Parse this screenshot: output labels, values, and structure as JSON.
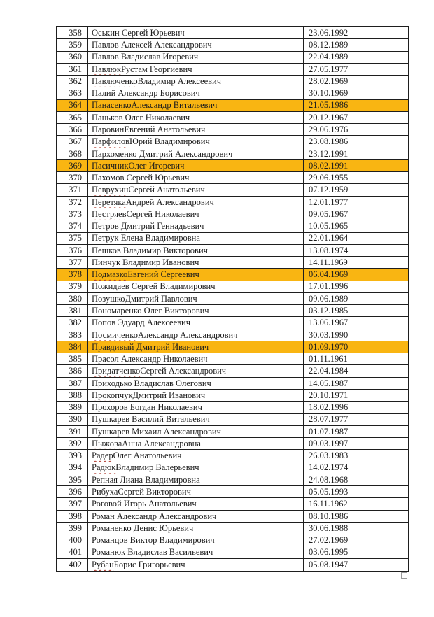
{
  "table": {
    "highlight_color": "#f9b512",
    "spellcheck_underline_color": "#b03a2e",
    "rows": [
      {
        "n": "358",
        "name": "Оськин Сергей Юрьевич",
        "dob": "23.06.1992",
        "hl": false,
        "sp": false
      },
      {
        "n": "359",
        "name": "Павлов Алексей Александрович",
        "dob": "08.12.1989",
        "hl": false,
        "sp": false
      },
      {
        "n": "360",
        "name": "Павлов Владислав Игоревич",
        "dob": "22.04.1989",
        "hl": false,
        "sp": false
      },
      {
        "n": "361",
        "name": "Павлюк Рустам Георгиевич",
        "dob": "27.05.1977",
        "hl": false,
        "sp": true
      },
      {
        "n": "362",
        "name": "Павлюченко Владимир Алексеевич",
        "dob": "28.02.1969",
        "hl": false,
        "sp": true
      },
      {
        "n": "363",
        "name": "Палий Александр Борисович",
        "dob": "30.10.1969",
        "hl": false,
        "sp": false
      },
      {
        "n": "364",
        "name": "Панасенко Александр Витальевич",
        "dob": "21.05.1986",
        "hl": true,
        "sp": true
      },
      {
        "n": "365",
        "name": "Паньков Олег Николаевич",
        "dob": "20.12.1967",
        "hl": false,
        "sp": false
      },
      {
        "n": "366",
        "name": "Паровин Евгений Анатольевич",
        "dob": "29.06.1976",
        "hl": false,
        "sp": true
      },
      {
        "n": "367",
        "name": "Парфилов Юрий Владимирович",
        "dob": "23.08.1986",
        "hl": false,
        "sp": true
      },
      {
        "n": "368",
        "name": "Пархоменко Дмитрий Александрович",
        "dob": "23.12.1991",
        "hl": false,
        "sp": false
      },
      {
        "n": "369",
        "name": "Пасичник Олег Игоревич",
        "dob": "08.02.1991",
        "hl": true,
        "sp": true
      },
      {
        "n": "370",
        "name": "Пахомов Сергей Юрьевич",
        "dob": "29.06.1955",
        "hl": false,
        "sp": false
      },
      {
        "n": "371",
        "name": "Певрухин Сергей Анатольевич",
        "dob": "07.12.1959",
        "hl": false,
        "sp": true
      },
      {
        "n": "372",
        "name": "Перетяка Андрей Александрович",
        "dob": "12.01.1977",
        "hl": false,
        "sp": true
      },
      {
        "n": "373",
        "name": "Пестряев Сергей Николаевич",
        "dob": "09.05.1967",
        "hl": false,
        "sp": true
      },
      {
        "n": "374",
        "name": "Петров Дмитрий Геннадьевич",
        "dob": "10.05.1965",
        "hl": false,
        "sp": false
      },
      {
        "n": "375",
        "name": "Петрук Елена Владимировна",
        "dob": "22.01.1964",
        "hl": false,
        "sp": false
      },
      {
        "n": "376",
        "name": "Пешков Владимир Викторович",
        "dob": "13.08.1974",
        "hl": false,
        "sp": false
      },
      {
        "n": "377",
        "name": "Пинчук Владимир Иванович",
        "dob": "14.11.1969",
        "hl": false,
        "sp": false
      },
      {
        "n": "378",
        "name": "Подмазко Евгений Сергеевич",
        "dob": "06.04.1969",
        "hl": true,
        "sp": true
      },
      {
        "n": "379",
        "name": "Пожидаев Сергей Владимирович",
        "dob": "17.01.1996",
        "hl": false,
        "sp": false
      },
      {
        "n": "380",
        "name": "Позушко Дмитрий Павлович",
        "dob": "09.06.1989",
        "hl": false,
        "sp": true
      },
      {
        "n": "381",
        "name": "Пономаренко Олег Викторович",
        "dob": "03.12.1985",
        "hl": false,
        "sp": false
      },
      {
        "n": "382",
        "name": "Попов Эдуард Алексеевич",
        "dob": "13.06.1967",
        "hl": false,
        "sp": false
      },
      {
        "n": "383",
        "name": "Посмиченко Александр Александрович",
        "dob": "30.03.1990",
        "hl": false,
        "sp": true
      },
      {
        "n": "384",
        "name": "Правдивый Дмитрий Иванович",
        "dob": "01.09.1970",
        "hl": true,
        "sp": false
      },
      {
        "n": "385",
        "name": "Прасол Александр Николаевич",
        "dob": "01.11.1961",
        "hl": false,
        "sp": false
      },
      {
        "n": "386",
        "name": "Придатченко Сергей Александрович",
        "dob": "22.04.1984",
        "hl": false,
        "sp": true
      },
      {
        "n": "387",
        "name": "Приходько Владислав Олегович",
        "dob": "14.05.1987",
        "hl": false,
        "sp": false
      },
      {
        "n": "388",
        "name": "Прокопчук Дмитрий Иванович",
        "dob": "20.10.1971",
        "hl": false,
        "sp": true
      },
      {
        "n": "389",
        "name": "Прохоров Богдан Николаевич",
        "dob": "18.02.1996",
        "hl": false,
        "sp": false
      },
      {
        "n": "390",
        "name": "Пушкарев Василий Витальевич",
        "dob": "28.07.1977",
        "hl": false,
        "sp": false
      },
      {
        "n": "391",
        "name": "Пушкарев Михаил Александрович",
        "dob": "01.07.1987",
        "hl": false,
        "sp": false
      },
      {
        "n": "392",
        "name": "Пыжова Анна Александровна",
        "dob": "09.03.1997",
        "hl": false,
        "sp": true
      },
      {
        "n": "393",
        "name": "Радер Олег Анатольевич",
        "dob": "26.03.1983",
        "hl": false,
        "sp": true
      },
      {
        "n": "394",
        "name": "Радюк Владимир Валерьевич",
        "dob": "14.02.1974",
        "hl": false,
        "sp": true
      },
      {
        "n": "395",
        "name": "Репная Лиана Владимировна",
        "dob": "24.08.1968",
        "hl": false,
        "sp": false
      },
      {
        "n": "396",
        "name": "Рибуха Сергей Викторович",
        "dob": "05.05.1993",
        "hl": false,
        "sp": true
      },
      {
        "n": "397",
        "name": "Роговой Игорь Анатольевич",
        "dob": "16.11.1962",
        "hl": false,
        "sp": false
      },
      {
        "n": "398",
        "name": "Роман Александр Александрович",
        "dob": "08.10.1986",
        "hl": false,
        "sp": false
      },
      {
        "n": "399",
        "name": "Романенко Денис Юрьевич",
        "dob": "30.06.1988",
        "hl": false,
        "sp": false
      },
      {
        "n": "400",
        "name": "Романцов Виктор Владимирович",
        "dob": "27.02.1969",
        "hl": false,
        "sp": false
      },
      {
        "n": "401",
        "name": "Романюк Владислав Васильевич",
        "dob": "03.06.1995",
        "hl": false,
        "sp": false
      },
      {
        "n": "402",
        "name": "Рубан Борис Григорьевич",
        "dob": "05.08.1947",
        "hl": false,
        "sp": true
      }
    ]
  }
}
